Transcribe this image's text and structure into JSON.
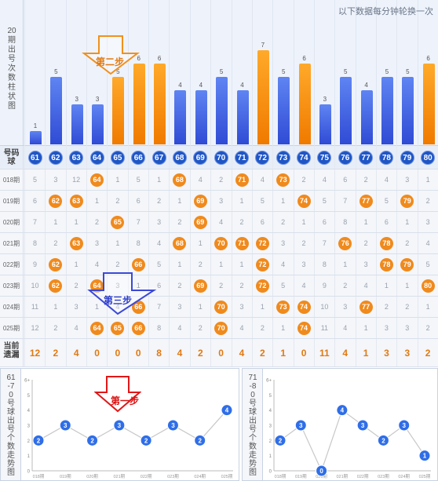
{
  "header": {
    "note": "以下数据每分钟轮换一次",
    "bar_side_label": "20期出号次数柱状图"
  },
  "chart_data": [
    {
      "type": "bar",
      "categories": [
        "61",
        "62",
        "63",
        "64",
        "65",
        "66",
        "67",
        "68",
        "69",
        "70",
        "71",
        "72",
        "73",
        "74",
        "75",
        "76",
        "77",
        "78",
        "79",
        "80"
      ],
      "values": [
        1,
        5,
        3,
        3,
        5,
        6,
        6,
        4,
        4,
        5,
        4,
        7,
        5,
        6,
        3,
        5,
        4,
        5,
        5,
        6
      ],
      "highlight": [
        "65",
        "66",
        "67",
        "72",
        "74",
        "80"
      ],
      "colors": {
        "normal": "#3b5ee0",
        "highlight": "#f28a0c"
      }
    },
    {
      "type": "line",
      "side_label": "61-70号球出号个数走势图",
      "x": [
        "018期",
        "019期",
        "020期",
        "021期",
        "022期",
        "023期",
        "024期",
        "025期"
      ],
      "y": [
        2,
        3,
        2,
        3,
        2,
        3,
        2,
        4
      ],
      "ylim": [
        0,
        6
      ],
      "yticks": [
        "0",
        "1",
        "2",
        "3",
        "4",
        "5",
        "6+"
      ]
    },
    {
      "type": "line",
      "side_label": "71-80号球出号个数走势图",
      "x": [
        "018期",
        "019期",
        "020期",
        "021期",
        "022期",
        "023期",
        "024期",
        "025期"
      ],
      "y": [
        2,
        3,
        0,
        4,
        3,
        2,
        3,
        1
      ],
      "ylim": [
        0,
        6
      ],
      "yticks": [
        "0",
        "1",
        "2",
        "3",
        "4",
        "5",
        "6+"
      ]
    }
  ],
  "grid": {
    "header_label": "号码球",
    "numbers": [
      "61",
      "62",
      "63",
      "64",
      "65",
      "66",
      "67",
      "68",
      "69",
      "70",
      "71",
      "72",
      "73",
      "74",
      "75",
      "76",
      "77",
      "78",
      "79",
      "80"
    ],
    "rows": [
      {
        "period": "018期",
        "cells": [
          "5",
          "3",
          "12",
          "64",
          "1",
          "5",
          "1",
          "68",
          "4",
          "2",
          "71",
          "4",
          "73",
          "2",
          "4",
          "6",
          "2",
          "4",
          "3",
          "1"
        ],
        "hits": [
          3,
          7,
          10,
          12
        ]
      },
      {
        "period": "019期",
        "cells": [
          "6",
          "62",
          "63",
          "1",
          "2",
          "6",
          "2",
          "1",
          "69",
          "3",
          "1",
          "5",
          "1",
          "74",
          "5",
          "7",
          "77",
          "5",
          "79",
          "2"
        ],
        "hits": [
          1,
          2,
          8,
          13,
          16,
          18
        ]
      },
      {
        "period": "020期",
        "cells": [
          "7",
          "1",
          "1",
          "2",
          "65",
          "7",
          "3",
          "2",
          "69",
          "4",
          "2",
          "6",
          "2",
          "1",
          "6",
          "8",
          "1",
          "6",
          "1",
          "3"
        ],
        "hits": [
          4,
          8
        ]
      },
      {
        "period": "021期",
        "cells": [
          "8",
          "2",
          "63",
          "3",
          "1",
          "8",
          "4",
          "68",
          "1",
          "70",
          "71",
          "72",
          "3",
          "2",
          "7",
          "76",
          "2",
          "78",
          "2",
          "4"
        ],
        "hits": [
          2,
          7,
          9,
          10,
          11,
          15,
          17
        ]
      },
      {
        "period": "022期",
        "cells": [
          "9",
          "62",
          "1",
          "4",
          "2",
          "66",
          "5",
          "1",
          "2",
          "1",
          "1",
          "72",
          "4",
          "3",
          "8",
          "1",
          "3",
          "78",
          "79",
          "5"
        ],
        "hits": [
          1,
          5,
          11,
          17,
          18
        ]
      },
      {
        "period": "023期",
        "cells": [
          "10",
          "62",
          "2",
          "64",
          "3",
          "1",
          "6",
          "2",
          "69",
          "2",
          "2",
          "72",
          "5",
          "4",
          "9",
          "2",
          "4",
          "1",
          "1",
          "80"
        ],
        "hits": [
          1,
          3,
          8,
          11,
          19
        ]
      },
      {
        "period": "024期",
        "cells": [
          "11",
          "1",
          "3",
          "1",
          "4",
          "66",
          "7",
          "3",
          "1",
          "70",
          "3",
          "1",
          "73",
          "74",
          "10",
          "3",
          "77",
          "2",
          "2",
          "1"
        ],
        "hits": [
          5,
          9,
          12,
          13,
          16
        ]
      },
      {
        "period": "025期",
        "cells": [
          "12",
          "2",
          "4",
          "64",
          "65",
          "66",
          "8",
          "4",
          "2",
          "70",
          "4",
          "2",
          "1",
          "74",
          "11",
          "4",
          "1",
          "3",
          "3",
          "2"
        ],
        "hits": [
          3,
          4,
          5,
          9,
          13
        ]
      }
    ],
    "miss_label": "当前遗漏",
    "miss": [
      "12",
      "2",
      "4",
      "0",
      "0",
      "0",
      "8",
      "4",
      "2",
      "0",
      "4",
      "2",
      "1",
      "0",
      "11",
      "4",
      "1",
      "3",
      "3",
      "2"
    ]
  },
  "annotations": {
    "step1": "第一步",
    "step2": "第二步",
    "step3": "第三步"
  }
}
